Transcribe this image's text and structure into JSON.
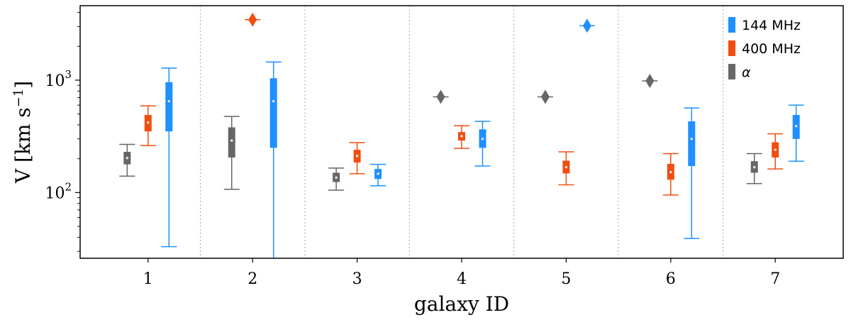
{
  "chart_data": {
    "type": "boxplot",
    "title": "",
    "xlabel": "galaxy ID",
    "ylabel": "V [km s$^{-1}$]",
    "ylabel_text": "V [km s",
    "ylabel_sup": "−1",
    "ylabel_close": "]",
    "yscale": "log",
    "ylim": [
      26,
      4600
    ],
    "yticks": [
      {
        "value": 100,
        "base": "10",
        "exp": "2"
      },
      {
        "value": 1000,
        "base": "10",
        "exp": "3"
      }
    ],
    "categories": [
      "1",
      "2",
      "3",
      "4",
      "5",
      "6",
      "7"
    ],
    "xlim": [
      0.35,
      7.65
    ],
    "separators": [
      1.5,
      2.5,
      3.5,
      4.5,
      5.5,
      6.5
    ],
    "series": [
      {
        "name": "144 MHz",
        "legend_label": "144 MHz",
        "color": "#1e90ff",
        "offset": 0.2,
        "boxes": [
          {
            "id": 1,
            "whislo": 33,
            "q1": 350,
            "med": 650,
            "q3": 960,
            "whishi": 1280
          },
          {
            "id": 2,
            "whislo": 26,
            "q1": 250,
            "med": 650,
            "q3": 1040,
            "whishi": 1450
          },
          {
            "id": 3,
            "whislo": 115,
            "q1": 132,
            "med": 147,
            "q3": 162,
            "whishi": 178
          },
          {
            "id": 4,
            "whislo": 172,
            "q1": 250,
            "med": 300,
            "q3": 365,
            "whishi": 430
          },
          {
            "id": 5,
            "single": 3050
          },
          {
            "id": 6,
            "whislo": 39,
            "q1": 172,
            "med": 300,
            "q3": 430,
            "whishi": 565
          },
          {
            "id": 7,
            "whislo": 190,
            "q1": 300,
            "med": 390,
            "q3": 490,
            "whishi": 600
          }
        ]
      },
      {
        "name": "400 MHz",
        "legend_label": "400 MHz",
        "color": "#f04d10",
        "offset": 0.0,
        "boxes": [
          {
            "id": 1,
            "whislo": 262,
            "q1": 350,
            "med": 420,
            "q3": 490,
            "whishi": 590
          },
          {
            "id": 2,
            "single": 3450
          },
          {
            "id": 3,
            "whislo": 147,
            "q1": 185,
            "med": 212,
            "q3": 240,
            "whishi": 278
          },
          {
            "id": 4,
            "whislo": 247,
            "q1": 290,
            "med": 318,
            "q3": 345,
            "whishi": 393
          },
          {
            "id": 5,
            "whislo": 117,
            "q1": 148,
            "med": 168,
            "q3": 192,
            "whishi": 230
          },
          {
            "id": 6,
            "whislo": 95,
            "q1": 130,
            "med": 152,
            "q3": 180,
            "whishi": 222
          },
          {
            "id": 7,
            "whislo": 162,
            "q1": 205,
            "med": 240,
            "q3": 280,
            "whishi": 333
          }
        ]
      },
      {
        "name": "alpha",
        "legend_label": "α",
        "color": "#666666",
        "offset": -0.2,
        "boxes": [
          {
            "id": 1,
            "whislo": 140,
            "q1": 178,
            "med": 203,
            "q3": 230,
            "whishi": 268
          },
          {
            "id": 2,
            "whislo": 107,
            "q1": 205,
            "med": 290,
            "q3": 380,
            "whishi": 475
          },
          {
            "id": 3,
            "whislo": 105,
            "q1": 124,
            "med": 136,
            "q3": 150,
            "whishi": 165
          },
          {
            "id": 4,
            "single": 710
          },
          {
            "id": 5,
            "single": 710
          },
          {
            "id": 6,
            "single": 985
          },
          {
            "id": 7,
            "whislo": 120,
            "q1": 150,
            "med": 168,
            "q3": 190,
            "whishi": 222
          }
        ]
      }
    ],
    "legend_position": "top-right",
    "grid": false
  }
}
